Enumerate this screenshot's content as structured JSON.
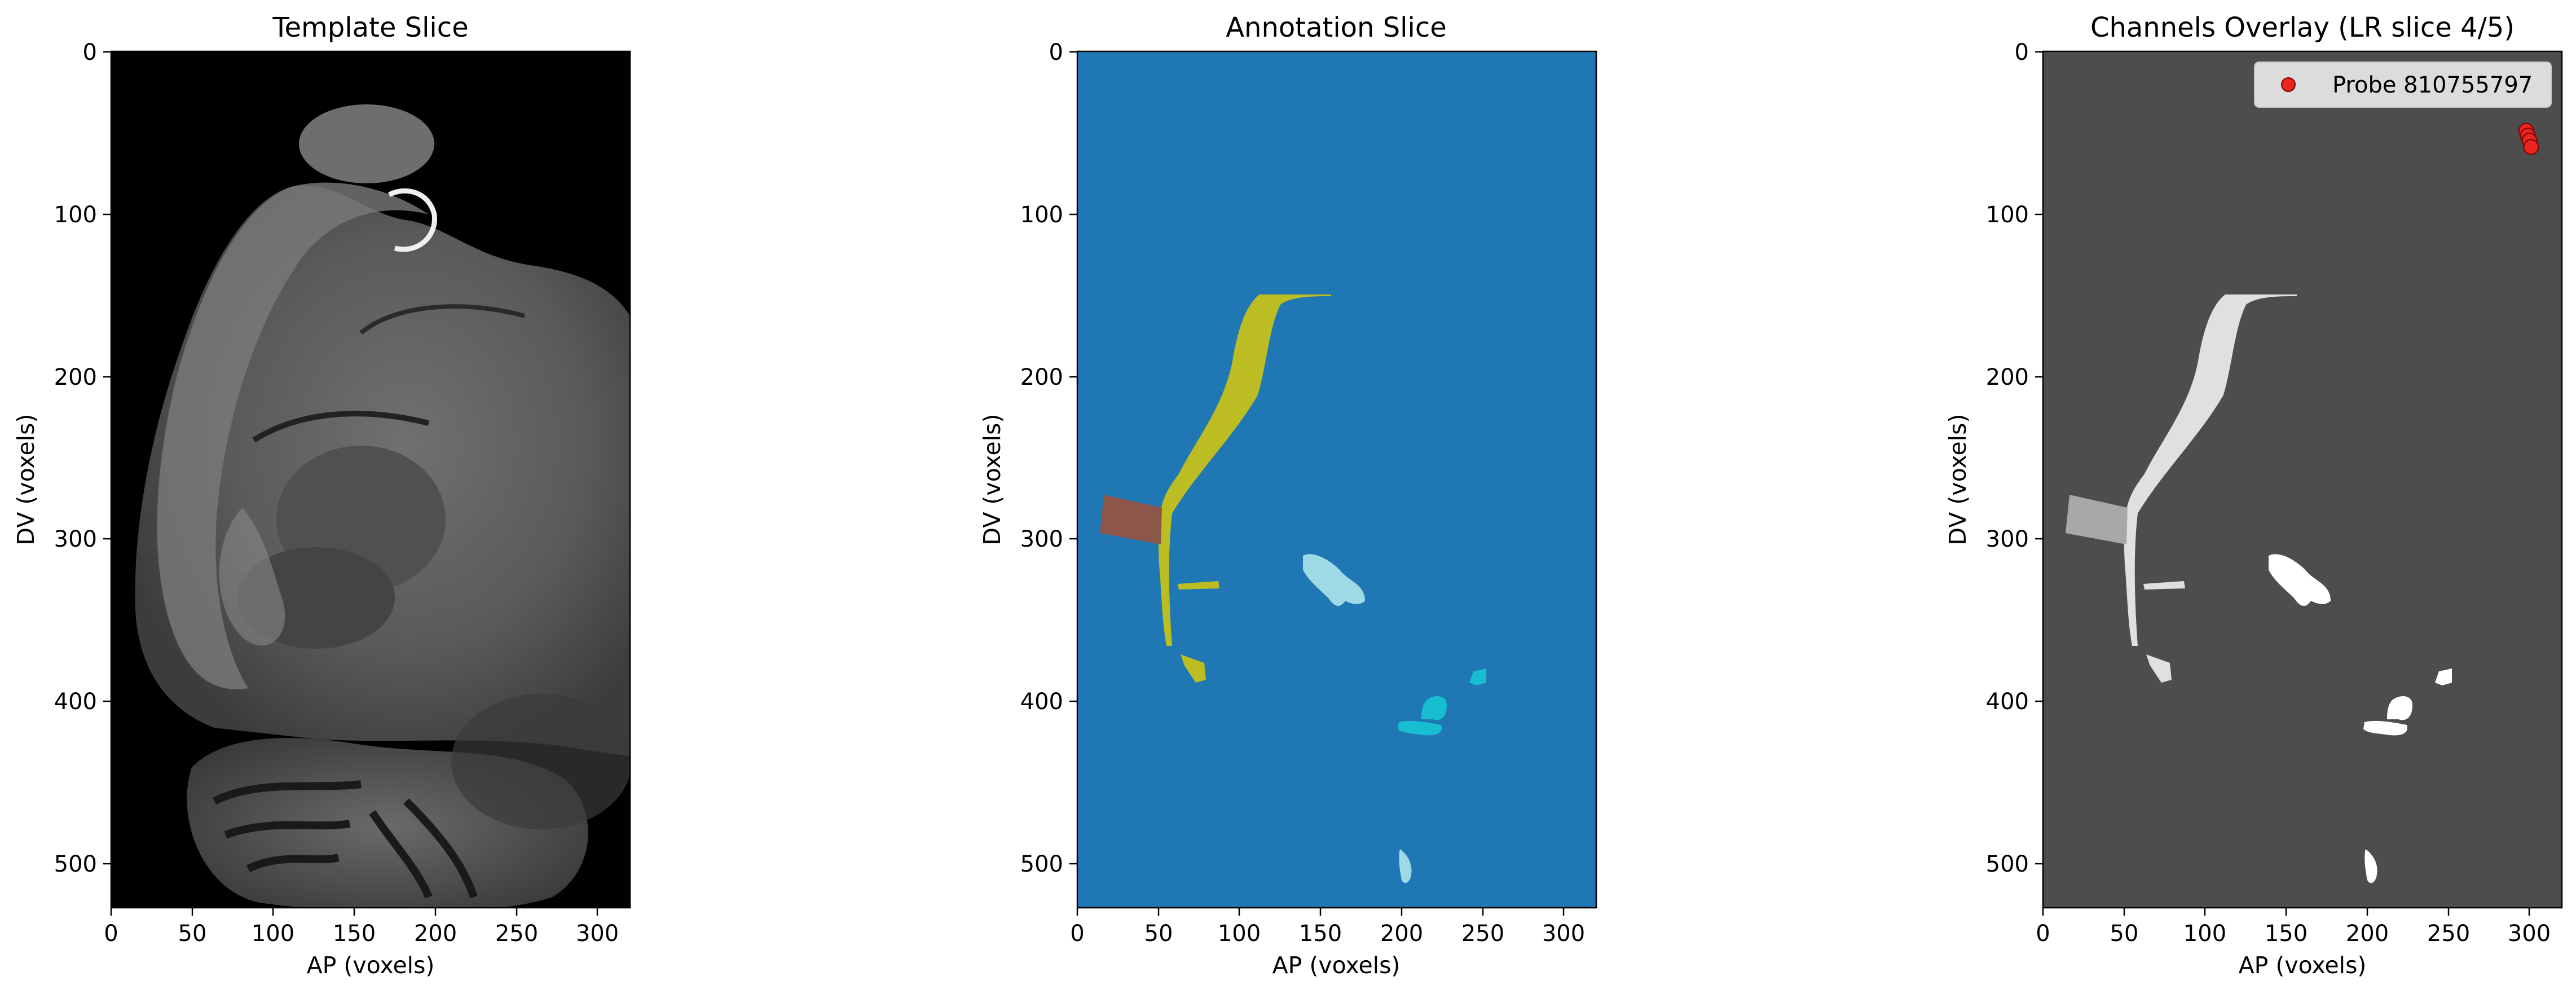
{
  "chart_data": [
    {
      "type": "heatmap",
      "title": "Template Slice",
      "xlabel": "AP (voxels)",
      "ylabel": "DV (voxels)",
      "xlim": [
        0,
        320
      ],
      "ylim": [
        528,
        0
      ],
      "xticks": [
        0,
        50,
        100,
        150,
        200,
        250,
        300
      ],
      "yticks": [
        0,
        100,
        200,
        300,
        400,
        500
      ],
      "colormap": "gray"
    },
    {
      "type": "heatmap",
      "title": "Annotation Slice",
      "xlabel": "AP (voxels)",
      "ylabel": "DV (voxels)",
      "xlim": [
        0,
        320
      ],
      "ylim": [
        528,
        0
      ],
      "xticks": [
        0,
        50,
        100,
        150,
        200,
        250,
        300
      ],
      "yticks": [
        0,
        100,
        200,
        300,
        400,
        500
      ],
      "colors": {
        "background": "#1f77b4",
        "fiber": "#bcbd22",
        "region_brown": "#8c564b",
        "region_lightblue": "#9edae5",
        "region_cyan": "#17becf"
      }
    },
    {
      "type": "scatter",
      "title": "Channels Overlay (LR slice 4/5)",
      "xlabel": "AP (voxels)",
      "ylabel": "DV (voxels)",
      "xlim": [
        0,
        320
      ],
      "ylim": [
        528,
        0
      ],
      "xticks": [
        0,
        50,
        100,
        150,
        200,
        250,
        300
      ],
      "yticks": [
        0,
        100,
        200,
        300,
        400,
        500
      ],
      "legend_position": "top-right",
      "background_color": "#4d4d4d",
      "series": [
        {
          "name": "Probe 810755797",
          "color": "#e8251f",
          "points": [
            [
              298,
              49
            ],
            [
              299,
              52
            ],
            [
              300,
              55
            ],
            [
              301,
              59
            ]
          ]
        }
      ]
    }
  ]
}
